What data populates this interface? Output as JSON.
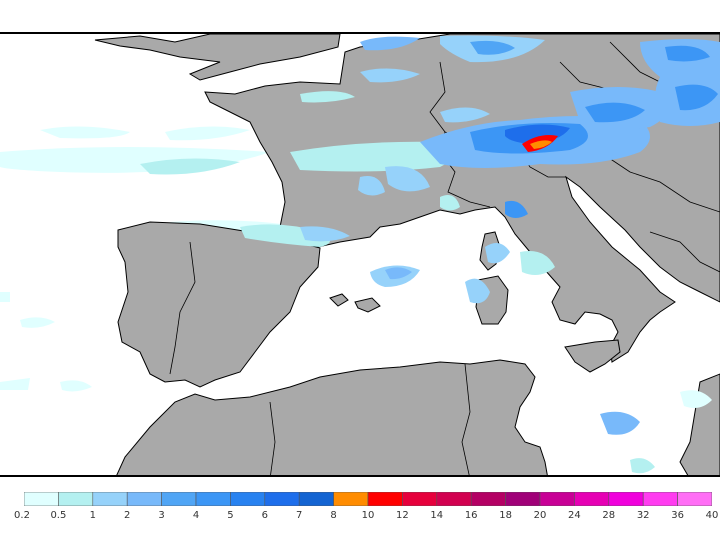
{
  "map": {
    "land_color": "#a9a9a9",
    "sea_color": "#ffffff",
    "coast_color": "#000000"
  },
  "legend": {
    "colors": [
      "#e0ffff",
      "#b4f0f0",
      "#96d2fa",
      "#78b9fa",
      "#50a5f5",
      "#3c96f5",
      "#2882f0",
      "#1e6eeb",
      "#1464d2",
      "#ff8c00",
      "#ff0000",
      "#e6003c",
      "#d20050",
      "#b40064",
      "#a00078",
      "#c80096",
      "#e600b4",
      "#f000dc",
      "#ff3cf0",
      "#ff6ef5"
    ],
    "labels": [
      "0.2",
      "0.5",
      "1",
      "2",
      "3",
      "4",
      "5",
      "6",
      "7",
      "8",
      "10",
      "12",
      "14",
      "16",
      "18",
      "20",
      "24",
      "28",
      "32",
      "36",
      "40"
    ]
  }
}
